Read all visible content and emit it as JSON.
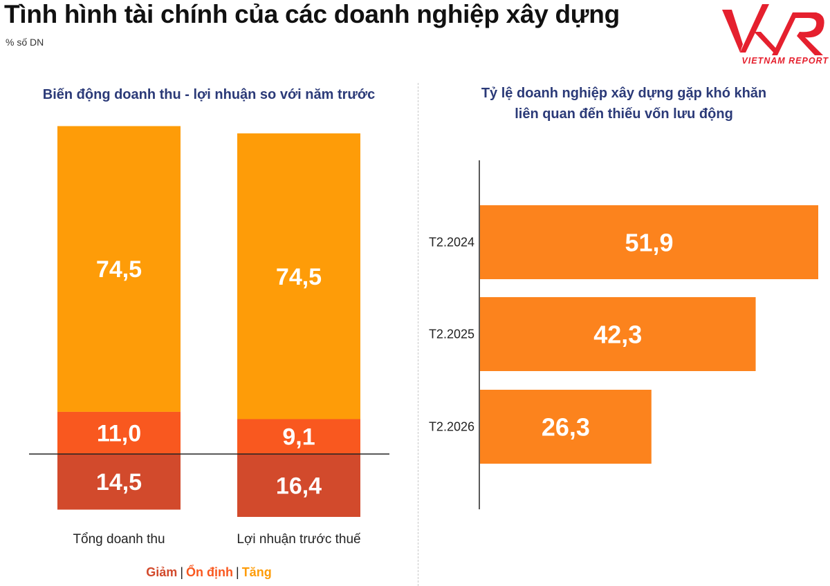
{
  "header": {
    "title": "Tình hình tài chính của các doanh nghiệp xây dựng",
    "unit": "% số DN",
    "logo_text": "VIETNAM REPORT"
  },
  "colors": {
    "giam": "#d24a2c",
    "on_dinh": "#f9581f",
    "tang": "#fe9c08",
    "hbar": "#fc831d",
    "panel_title": "#2b3a78"
  },
  "legend": {
    "giam": "Giảm",
    "on_dinh": "Ổn định",
    "tang": "Tăng",
    "separator": "|"
  },
  "chart_data": [
    {
      "type": "bar",
      "stacked": true,
      "title": "Biến động doanh thu - lợi nhuận so với năm trước",
      "categories": [
        "Tổng doanh thu",
        "Lợi nhuận trước thuế"
      ],
      "series": [
        {
          "name": "Giảm",
          "values": [
            14.5,
            16.4
          ],
          "labels": [
            "14,5",
            "16,4"
          ],
          "color": "#d24a2c"
        },
        {
          "name": "Ổn định",
          "values": [
            11.0,
            9.1
          ],
          "labels": [
            "11,0",
            "9,1"
          ],
          "color": "#f9581f"
        },
        {
          "name": "Tăng",
          "values": [
            74.5,
            74.5
          ],
          "labels": [
            "74,5",
            "74,5"
          ],
          "color": "#fe9c08"
        }
      ],
      "baseline_note": "Giảm is drawn below the zero line, Ổn định and Tăng above it",
      "legend_position": "bottom"
    },
    {
      "type": "bar",
      "orientation": "horizontal",
      "title": "Tỷ lệ doanh nghiệp xây dựng gặp khó khăn liên quan đến thiếu vốn lưu động",
      "title_lines": [
        "Tỷ lệ doanh nghiệp xây dựng gặp khó khăn",
        "liên quan đến thiếu vốn lưu động"
      ],
      "categories": [
        "T2.2024",
        "T2.2025",
        "T2.2026"
      ],
      "values": [
        51.9,
        42.3,
        26.3
      ],
      "labels": [
        "51,9",
        "42,3",
        "26,3"
      ],
      "xlim": [
        0,
        51.9
      ],
      "color": "#fc831d"
    }
  ]
}
